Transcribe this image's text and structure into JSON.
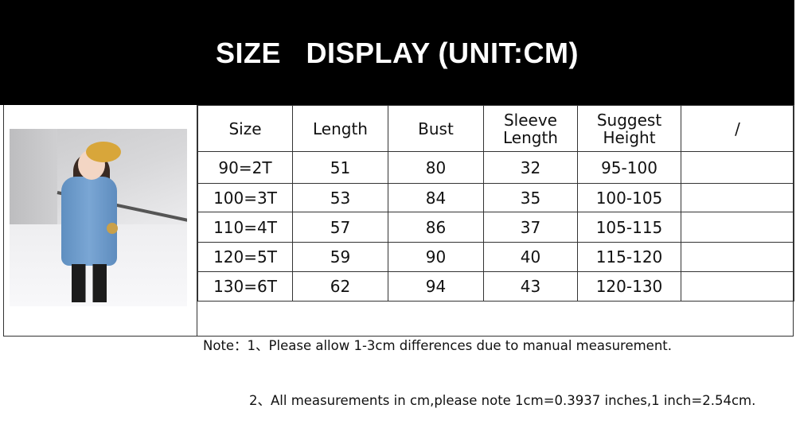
{
  "banner": {
    "title": "SIZE   DISPLAY (UNIT:CM)"
  },
  "table": {
    "headers": [
      "Size",
      "Length",
      "Bust",
      "Sleeve Length",
      "Suggest Height",
      "/"
    ],
    "rows": [
      [
        "90=2T",
        "51",
        "80",
        "32",
        "95-100",
        ""
      ],
      [
        "100=3T",
        "53",
        "84",
        "35",
        "100-105",
        ""
      ],
      [
        "110=4T",
        "57",
        "86",
        "37",
        "105-115",
        ""
      ],
      [
        "120=5T",
        "59",
        "90",
        "40",
        "115-120",
        ""
      ],
      [
        "130=6T",
        "62",
        "94",
        "43",
        "120-130",
        ""
      ]
    ]
  },
  "notes": {
    "line1": "Note：1、Please allow 1-3cm differences due to manual measurement.",
    "line2": "2、All measurements in cm,please note 1cm=0.3937 inches,1 inch=2.54cm."
  },
  "colors": {
    "banner_bg": "#000000",
    "banner_text": "#ffffff",
    "border": "#333333"
  }
}
